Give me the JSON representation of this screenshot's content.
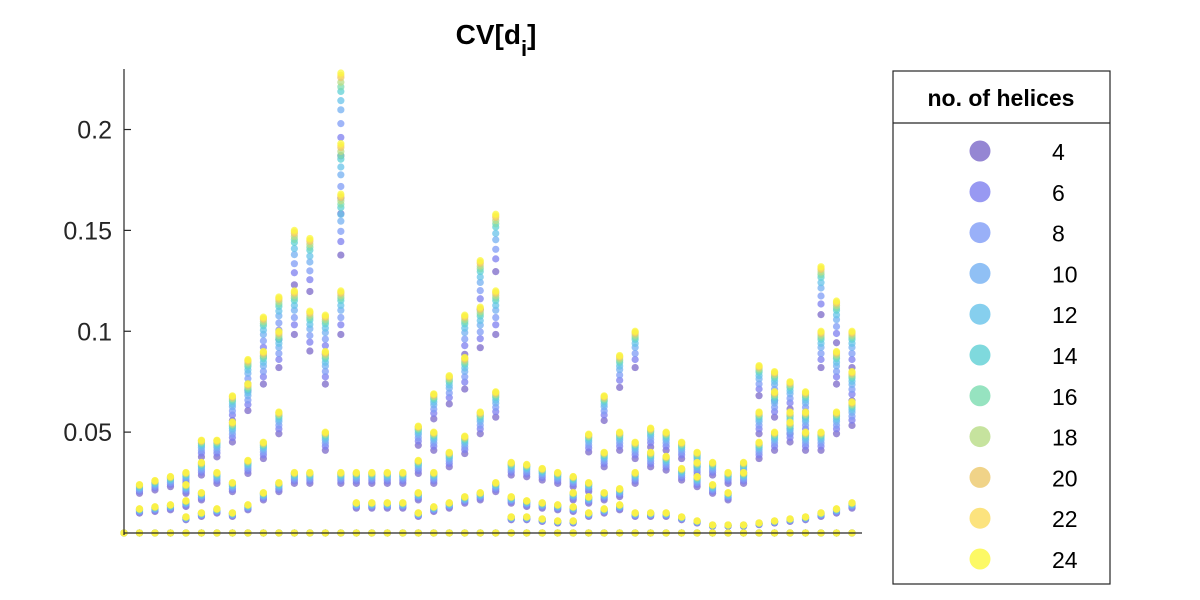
{
  "chart_data": {
    "type": "scatter",
    "title_main": "CV[d",
    "title_sub": "i",
    "title_close": "]",
    "xlabel": "",
    "ylabel": "",
    "ylim": [
      -0.001,
      0.23
    ],
    "yticks": [
      0.05,
      0.1,
      0.15,
      0.2
    ],
    "ytick_labels": [
      "0.05",
      "0.1",
      "0.15",
      "0.2"
    ],
    "grid": false,
    "x_axis_visible": false,
    "legend": {
      "title": "no. of helices",
      "placement": "right-outside"
    },
    "series": [
      {
        "name": "4",
        "color": "#7b68c8",
        "scale": 0.82
      },
      {
        "name": "6",
        "color": "#7e7fef",
        "scale": 0.86
      },
      {
        "name": "8",
        "color": "#7f9cf6",
        "scale": 0.89
      },
      {
        "name": "10",
        "color": "#74b0f2",
        "scale": 0.92
      },
      {
        "name": "12",
        "color": "#68c3ea",
        "scale": 0.94
      },
      {
        "name": "14",
        "color": "#5fd0d4",
        "scale": 0.96
      },
      {
        "name": "16",
        "color": "#7cdcb0",
        "scale": 0.97
      },
      {
        "name": "18",
        "color": "#b8dc86",
        "scale": 0.98
      },
      {
        "name": "20",
        "color": "#ecc86a",
        "scale": 0.99
      },
      {
        "name": "22",
        "color": "#fbdc5e",
        "scale": 0.995
      },
      {
        "name": "24",
        "color": "#fbf83e",
        "scale": 1.0
      }
    ],
    "x_count": 48,
    "columns_approx": [
      [
        0.0
      ],
      [
        0.0,
        0.012,
        0.024
      ],
      [
        0.0,
        0.013,
        0.026
      ],
      [
        0.0,
        0.014,
        0.028
      ],
      [
        0.0,
        0.008,
        0.016,
        0.024,
        0.03
      ],
      [
        0.0,
        0.01,
        0.02,
        0.035,
        0.046
      ],
      [
        0.0,
        0.012,
        0.03,
        0.046
      ],
      [
        0.0,
        0.01,
        0.025,
        0.055,
        0.068
      ],
      [
        0.0,
        0.014,
        0.036,
        0.074,
        0.086
      ],
      [
        0.0,
        0.02,
        0.045,
        0.09,
        0.107
      ],
      [
        0.0,
        0.025,
        0.06,
        0.1,
        0.117
      ],
      [
        0.0,
        0.03,
        0.12,
        0.15
      ],
      [
        0.0,
        0.03,
        0.11,
        0.146
      ],
      [
        0.0,
        0.05,
        0.09,
        0.108
      ],
      [
        0.0,
        0.03,
        0.12,
        0.168,
        0.193,
        0.228
      ],
      [
        0.0,
        0.015,
        0.03
      ],
      [
        0.0,
        0.015,
        0.03
      ],
      [
        0.0,
        0.015,
        0.03
      ],
      [
        0.0,
        0.015,
        0.03
      ],
      [
        0.0,
        0.01,
        0.02,
        0.036,
        0.053
      ],
      [
        0.0,
        0.013,
        0.03,
        0.05,
        0.069
      ],
      [
        0.0,
        0.015,
        0.04,
        0.078
      ],
      [
        0.0,
        0.018,
        0.048,
        0.087,
        0.108
      ],
      [
        0.0,
        0.02,
        0.06,
        0.135,
        0.112
      ],
      [
        0.0,
        0.025,
        0.07,
        0.158,
        0.12
      ],
      [
        0.0,
        0.008,
        0.018,
        0.035
      ],
      [
        0.0,
        0.008,
        0.016,
        0.034
      ],
      [
        0.0,
        0.007,
        0.015,
        0.032
      ],
      [
        0.0,
        0.006,
        0.014,
        0.03
      ],
      [
        0.0,
        0.006,
        0.013,
        0.028,
        0.02
      ],
      [
        0.0,
        0.01,
        0.018,
        0.049,
        0.025
      ],
      [
        0.0,
        0.012,
        0.02,
        0.068,
        0.04
      ],
      [
        0.0,
        0.014,
        0.022,
        0.088,
        0.05
      ],
      [
        0.0,
        0.01,
        0.03,
        0.1,
        0.045
      ],
      [
        0.0,
        0.01,
        0.04,
        0.052
      ],
      [
        0.0,
        0.01,
        0.038,
        0.05
      ],
      [
        0.0,
        0.008,
        0.032,
        0.045
      ],
      [
        0.0,
        0.006,
        0.028,
        0.04,
        0.035
      ],
      [
        0.0,
        0.004,
        0.024,
        0.035
      ],
      [
        0.0,
        0.004,
        0.03,
        0.02
      ],
      [
        0.0,
        0.004,
        0.035,
        0.03
      ],
      [
        0.0,
        0.005,
        0.045,
        0.083,
        0.06
      ],
      [
        0.0,
        0.006,
        0.05,
        0.08,
        0.07
      ],
      [
        0.0,
        0.007,
        0.055,
        0.075,
        0.06
      ],
      [
        0.0,
        0.008,
        0.06,
        0.07,
        0.05
      ],
      [
        0.0,
        0.01,
        0.05,
        0.132,
        0.1
      ],
      [
        0.0,
        0.012,
        0.06,
        0.115,
        0.09
      ],
      [
        0.0,
        0.015,
        0.065,
        0.1,
        0.08
      ]
    ]
  }
}
